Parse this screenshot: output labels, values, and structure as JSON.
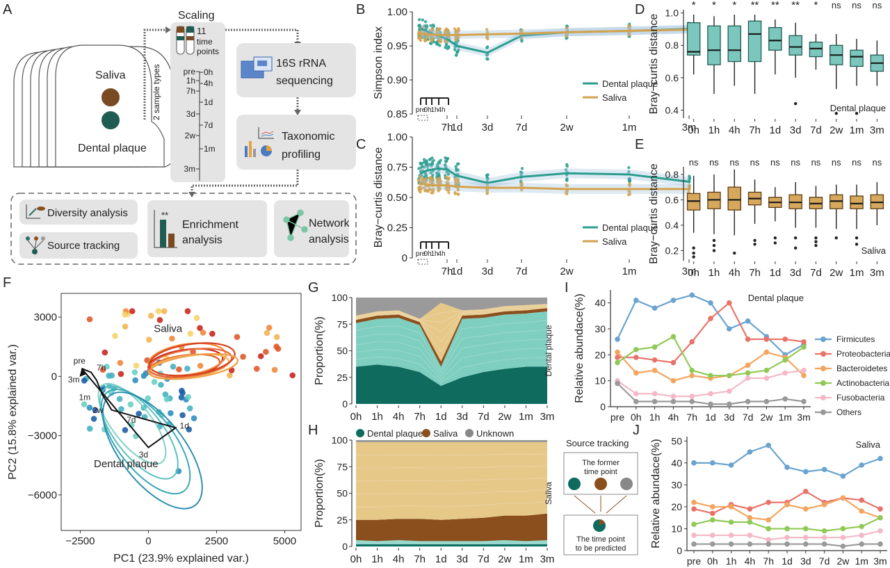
{
  "labels": {
    "A": "A",
    "B": "B",
    "C": "C",
    "D": "D",
    "E": "E",
    "F": "F",
    "G": "G",
    "H": "H",
    "I": "I",
    "J": "J"
  },
  "workflow": {
    "saliva": "Saliva",
    "plaque": "Dental plaque",
    "sample_types": "2 sample types",
    "scaling": "Scaling",
    "time_points_num": "11",
    "time_points_l1": "time",
    "time_points_l2": "points",
    "timeline_left": [
      "pre",
      "1h",
      "7h",
      "3d",
      "2w",
      "3m"
    ],
    "timeline_right": [
      "0h",
      "4h",
      "1d",
      "7d",
      "1m"
    ],
    "seq_l1": "16S rRNA",
    "seq_l2": "sequencing",
    "tax_l1": "Taxonomic",
    "tax_l2": "profiling",
    "diversity": "Diversity analysis",
    "source": "Source tracking",
    "enrich_l1": "Enrichment",
    "enrich_l2": "analysis",
    "enrich_stars": "**",
    "network_l1": "Network",
    "network_l2": "analysis"
  },
  "colors": {
    "plaque": "#2a9d8f",
    "saliva": "#d4a24c",
    "dark_teal": "#0e6b5e",
    "brown": "#8a4f1d",
    "grey": "#888888"
  },
  "chart_data": [
    {
      "id": "B",
      "type": "line+scatter",
      "ylabel": "Simpson index",
      "x_ticks": [
        "7h",
        "1d",
        "3d",
        "7d",
        "2w",
        "1m",
        "3m"
      ],
      "x_inset_ticks": [
        "pre",
        "0h",
        "1h",
        "4h"
      ],
      "ylim": [
        0.85,
        1.0
      ],
      "y_ticks": [
        "0.85",
        "0.90",
        "0.95",
        "1.00"
      ],
      "series": [
        {
          "name": "Dental plaque",
          "x": [
            "pre",
            "0h",
            "1h",
            "4h",
            "7h",
            "1d",
            "3d",
            "7d",
            "2w",
            "1m",
            "3m"
          ],
          "values": [
            0.975,
            0.972,
            0.968,
            0.965,
            0.96,
            0.95,
            0.94,
            0.965,
            0.97,
            0.972,
            0.975
          ]
        },
        {
          "name": "Saliva",
          "x": [
            "pre",
            "0h",
            "1h",
            "4h",
            "7h",
            "1d",
            "3d",
            "7d",
            "2w",
            "1m",
            "3m"
          ],
          "values": [
            0.968,
            0.967,
            0.967,
            0.966,
            0.966,
            0.966,
            0.967,
            0.968,
            0.97,
            0.972,
            0.974
          ]
        }
      ],
      "legend": "bottom-right"
    },
    {
      "id": "C",
      "type": "line+scatter",
      "ylabel": "Bray−curtis distance",
      "x_ticks": [
        "7h",
        "1d",
        "3d",
        "7d",
        "2w",
        "1m",
        "3m"
      ],
      "x_inset_ticks": [
        "pre",
        "0h",
        "1h",
        "4h"
      ],
      "ylim": [
        0,
        1.0
      ],
      "y_ticks": [
        "0",
        "0.25",
        "0.50",
        "0.75",
        "1.00"
      ],
      "series": [
        {
          "name": "Dental plaque",
          "x": [
            "pre",
            "0h",
            "1h",
            "4h",
            "7h",
            "1d",
            "3d",
            "7d",
            "2w",
            "1m",
            "3m"
          ],
          "values": [
            0.7,
            0.72,
            0.73,
            0.74,
            0.73,
            0.68,
            0.62,
            0.67,
            0.7,
            0.69,
            0.63
          ]
        },
        {
          "name": "Saliva",
          "x": [
            "pre",
            "0h",
            "1h",
            "4h",
            "7h",
            "1d",
            "3d",
            "7d",
            "2w",
            "1m",
            "3m"
          ],
          "values": [
            0.61,
            0.61,
            0.6,
            0.6,
            0.6,
            0.59,
            0.58,
            0.58,
            0.57,
            0.57,
            0.57
          ]
        }
      ],
      "legend": "bottom-right"
    },
    {
      "id": "D",
      "type": "box",
      "ylabel": "Bray−curtis distance",
      "annotation": "Dental plaque",
      "categories": [
        "0h",
        "1h",
        "4h",
        "7h",
        "1d",
        "3d",
        "7d",
        "2w",
        "1m",
        "3m"
      ],
      "ylim": [
        0.35,
        1.02
      ],
      "y_ticks": [
        "0.4",
        "0.6",
        "0.8",
        "1.0"
      ],
      "significance": [
        "*",
        "*",
        "*",
        "**",
        "**",
        "**",
        "*",
        "ns",
        "ns",
        "ns"
      ],
      "boxes": [
        {
          "min": 0.62,
          "q1": 0.74,
          "median": 0.76,
          "q3": 0.94,
          "max": 0.99
        },
        {
          "min": 0.5,
          "q1": 0.68,
          "median": 0.77,
          "q3": 0.92,
          "max": 0.98
        },
        {
          "min": 0.55,
          "q1": 0.7,
          "median": 0.77,
          "q3": 0.92,
          "max": 0.99
        },
        {
          "min": 0.5,
          "q1": 0.7,
          "median": 0.87,
          "q3": 0.95,
          "max": 0.99
        },
        {
          "min": 0.62,
          "q1": 0.77,
          "median": 0.83,
          "q3": 0.91,
          "max": 0.96
        },
        {
          "min": 0.6,
          "q1": 0.74,
          "median": 0.79,
          "q3": 0.86,
          "max": 0.94
        },
        {
          "min": 0.65,
          "q1": 0.73,
          "median": 0.78,
          "q3": 0.82,
          "max": 0.87
        },
        {
          "min": 0.53,
          "q1": 0.68,
          "median": 0.74,
          "q3": 0.8,
          "max": 0.87
        },
        {
          "min": 0.55,
          "q1": 0.67,
          "median": 0.73,
          "q3": 0.77,
          "max": 0.84
        },
        {
          "min": 0.55,
          "q1": 0.64,
          "median": 0.69,
          "q3": 0.74,
          "max": 0.83
        }
      ],
      "outliers": [
        [
          5,
          0.44
        ],
        [
          7,
          0.38
        ],
        [
          8,
          0.38
        ]
      ]
    },
    {
      "id": "E",
      "type": "box",
      "ylabel": "Bray−curtis distance",
      "annotation": "Saliva",
      "categories": [
        "0h",
        "1h",
        "4h",
        "7h",
        "1d",
        "3d",
        "7d",
        "2w",
        "1m",
        "3m"
      ],
      "ylim": [
        0.12,
        0.86
      ],
      "y_ticks": [
        "0.2",
        "0.4",
        "0.6",
        "0.8"
      ],
      "significance": [
        "ns",
        "ns",
        "ns",
        "ns",
        "ns",
        "ns",
        "ns",
        "ns",
        "ns",
        "ns"
      ],
      "boxes": [
        {
          "min": 0.34,
          "q1": 0.52,
          "median": 0.59,
          "q3": 0.65,
          "max": 0.79
        },
        {
          "min": 0.33,
          "q1": 0.53,
          "median": 0.6,
          "q3": 0.66,
          "max": 0.8
        },
        {
          "min": 0.32,
          "q1": 0.52,
          "median": 0.6,
          "q3": 0.7,
          "max": 0.84
        },
        {
          "min": 0.41,
          "q1": 0.56,
          "median": 0.61,
          "q3": 0.66,
          "max": 0.76
        },
        {
          "min": 0.43,
          "q1": 0.54,
          "median": 0.58,
          "q3": 0.62,
          "max": 0.7
        },
        {
          "min": 0.38,
          "q1": 0.53,
          "median": 0.58,
          "q3": 0.64,
          "max": 0.74
        },
        {
          "min": 0.38,
          "q1": 0.53,
          "median": 0.57,
          "q3": 0.62,
          "max": 0.71
        },
        {
          "min": 0.37,
          "q1": 0.53,
          "median": 0.59,
          "q3": 0.64,
          "max": 0.72
        },
        {
          "min": 0.37,
          "q1": 0.53,
          "median": 0.57,
          "q3": 0.63,
          "max": 0.72
        },
        {
          "min": 0.4,
          "q1": 0.53,
          "median": 0.58,
          "q3": 0.64,
          "max": 0.74
        }
      ],
      "outliers": [
        [
          0,
          0.22
        ],
        [
          0,
          0.18
        ],
        [
          0,
          0.15
        ],
        [
          1,
          0.28
        ],
        [
          1,
          0.24
        ],
        [
          1,
          0.2
        ],
        [
          2,
          0.18
        ],
        [
          3,
          0.28
        ],
        [
          3,
          0.25
        ],
        [
          4,
          0.3
        ],
        [
          4,
          0.26
        ],
        [
          5,
          0.3
        ],
        [
          5,
          0.22
        ],
        [
          6,
          0.3
        ],
        [
          6,
          0.27
        ],
        [
          6,
          0.24
        ],
        [
          7,
          0.3
        ],
        [
          8,
          0.3
        ],
        [
          8,
          0.25
        ]
      ]
    },
    {
      "id": "F",
      "type": "scatter",
      "xlabel": "PC1 (23.9% explained var.)",
      "ylabel": "PC2 (15.8% explained var.)",
      "xlim": [
        -3200,
        5600
      ],
      "ylim": [
        -7800,
        4200
      ],
      "x_ticks": [
        -2500,
        0,
        2500,
        5000
      ],
      "x_tick_labels": [
        "−2500",
        "0",
        "2500",
        "5000"
      ],
      "y_ticks": [
        3000,
        0,
        -3000,
        -6000
      ],
      "y_tick_labels": [
        "3000",
        "0",
        "−3000",
        "−6000"
      ],
      "annotations": [
        "Saliva",
        "Dental plaque"
      ],
      "trajectory_labels": [
        "pre",
        "7h",
        "3m",
        "1m",
        "2w",
        "7d",
        "1d",
        "3d"
      ]
    },
    {
      "id": "G",
      "type": "area",
      "ylabel": "Proportion(%)",
      "annotation": "Dental plaque",
      "categories": [
        "0h",
        "1h",
        "4h",
        "7h",
        "1d",
        "3d",
        "7d",
        "2w",
        "1m",
        "3m"
      ],
      "ylim": [
        0,
        100
      ],
      "y_ticks": [
        "0",
        "25",
        "50",
        "75",
        "100"
      ],
      "series": [
        {
          "name": "Dental plaque",
          "values": [
            35,
            37,
            35,
            30,
            17,
            25,
            30,
            33,
            35,
            35
          ]
        },
        {
          "name": "Dental plaque (light)",
          "values": [
            41,
            43,
            46,
            44,
            18,
            55,
            51,
            51,
            50,
            52
          ]
        },
        {
          "name": "Saliva",
          "values": [
            3,
            3,
            3,
            3,
            5,
            3,
            3,
            3,
            3,
            3
          ]
        },
        {
          "name": "Saliva (light)",
          "values": [
            4,
            4,
            4,
            3,
            55,
            5,
            5,
            5,
            5,
            4
          ]
        },
        {
          "name": "Unknown",
          "values": [
            17,
            13,
            12,
            20,
            5,
            12,
            11,
            8,
            7,
            6
          ]
        }
      ]
    },
    {
      "id": "H",
      "type": "area",
      "ylabel": "Proportion(%)",
      "annotation": "Saliva",
      "legend_entries": [
        "Dental plaque",
        "Saliva",
        "Unknown"
      ],
      "categories": [
        "0h",
        "1h",
        "4h",
        "7h",
        "1d",
        "3d",
        "7d",
        "2w",
        "1m",
        "3m"
      ],
      "ylim": [
        0,
        100
      ],
      "y_ticks": [
        "0",
        "25",
        "50",
        "75",
        "100"
      ],
      "series": [
        {
          "name": "Dental plaque",
          "values": [
            2,
            2,
            2,
            2,
            2,
            2,
            2,
            2,
            2,
            2
          ]
        },
        {
          "name": "Dental plaque (light)",
          "values": [
            4,
            3,
            4,
            3,
            3,
            3,
            3,
            4,
            3,
            4
          ]
        },
        {
          "name": "Saliva",
          "values": [
            19,
            20,
            20,
            21,
            20,
            21,
            22,
            23,
            24,
            25
          ]
        },
        {
          "name": "Saliva (light)",
          "values": [
            73,
            73,
            72,
            72,
            73,
            72,
            71,
            69,
            69,
            67
          ]
        },
        {
          "name": "Unknown",
          "values": [
            2,
            2,
            2,
            2,
            2,
            2,
            2,
            2,
            2,
            2
          ]
        }
      ]
    },
    {
      "id": "I",
      "type": "line",
      "ylabel": "Relative abundace(%)",
      "annotation": "Dental plaque",
      "categories": [
        "pre",
        "0h",
        "1h",
        "4h",
        "7h",
        "1d",
        "3d",
        "7d",
        "2w",
        "1m",
        "3m"
      ],
      "ylim": [
        0,
        45
      ],
      "y_ticks": [
        "0",
        "10",
        "20",
        "30",
        "40"
      ],
      "legend": "right",
      "series": [
        {
          "name": "Firmicutes",
          "color": "#6aa3cf",
          "values": [
            26,
            41,
            38,
            41,
            43,
            40,
            30,
            33,
            27,
            20,
            24
          ]
        },
        {
          "name": "Proteobacteria",
          "color": "#e8736a",
          "values": [
            19,
            19,
            18,
            17,
            25,
            34,
            40,
            26,
            26,
            26,
            25
          ]
        },
        {
          "name": "Bacteroidetes",
          "color": "#f3a55f",
          "values": [
            21,
            13,
            14,
            10,
            12,
            11,
            12,
            16,
            21,
            19,
            12
          ]
        },
        {
          "name": "Actinobacteria",
          "color": "#90c957",
          "values": [
            17,
            22,
            23,
            27,
            14,
            12,
            12,
            13,
            14,
            18,
            23
          ]
        },
        {
          "name": "Fusobacteria",
          "color": "#f4b8c8",
          "values": [
            10,
            5,
            5,
            4,
            4,
            5,
            6,
            11,
            11,
            13,
            14
          ]
        },
        {
          "name": "Others",
          "color": "#999999",
          "values": [
            9,
            2,
            2,
            2,
            2,
            1,
            1,
            2,
            2,
            3,
            2
          ]
        }
      ]
    },
    {
      "id": "J",
      "type": "line",
      "ylabel": "Relative abundace(%)",
      "annotation": "Saliva",
      "categories": [
        "pre",
        "0h",
        "1h",
        "4h",
        "7h",
        "1d",
        "3d",
        "7d",
        "2w",
        "1m",
        "3m"
      ],
      "ylim": [
        0,
        52
      ],
      "y_ticks": [
        "0",
        "10",
        "20",
        "30",
        "40",
        "50"
      ],
      "series": [
        {
          "name": "Firmicutes",
          "color": "#6aa3cf",
          "values": [
            40,
            40,
            39,
            45,
            48,
            38,
            36,
            37,
            34,
            39,
            42
          ]
        },
        {
          "name": "Proteobacteria",
          "color": "#e8736a",
          "values": [
            19,
            17,
            21,
            19,
            22,
            22,
            27,
            22,
            24,
            23,
            19
          ]
        },
        {
          "name": "Bacteroidetes",
          "color": "#f3a55f",
          "values": [
            22,
            20,
            20,
            15,
            14,
            21,
            19,
            21,
            24,
            18,
            15
          ]
        },
        {
          "name": "Actinobacteria",
          "color": "#90c957",
          "values": [
            12,
            14,
            13,
            13,
            10,
            10,
            10,
            9,
            10,
            11,
            15
          ]
        },
        {
          "name": "Fusobacteria",
          "color": "#f4b8c8",
          "values": [
            7,
            7,
            7,
            7,
            5,
            6,
            6,
            6,
            6,
            7,
            9
          ]
        },
        {
          "name": "Others",
          "color": "#999999",
          "values": [
            3,
            3,
            3,
            3,
            3,
            3,
            3,
            3,
            2,
            3,
            3
          ]
        }
      ]
    }
  ],
  "source_tracking": {
    "title": "Source tracking",
    "former_l1": "The former",
    "former_l2": "time point",
    "pred_l1": "The time point",
    "pred_l2": "to be predicted"
  }
}
